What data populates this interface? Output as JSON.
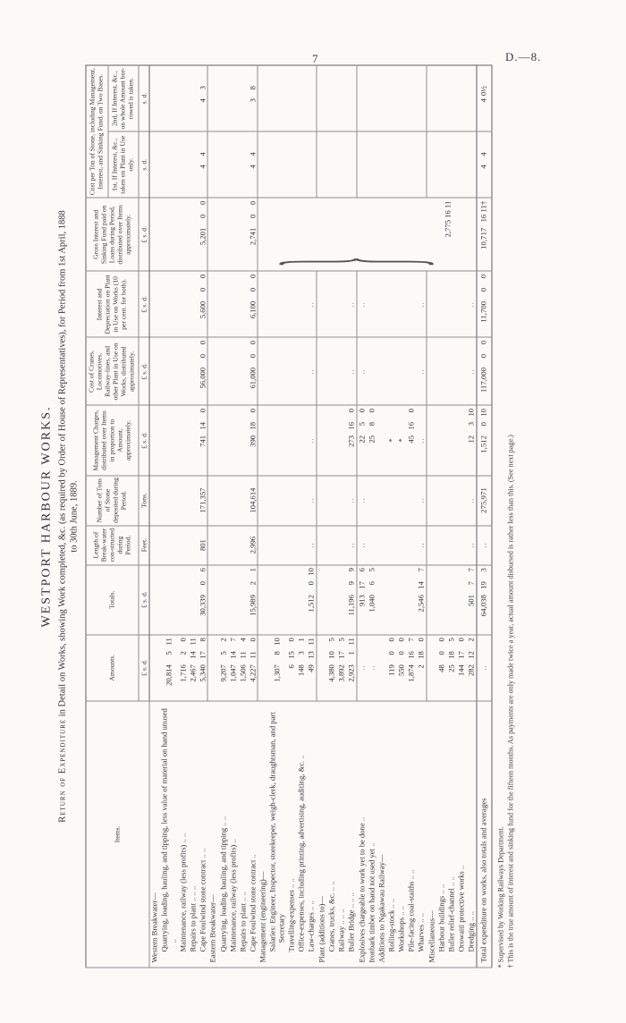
{
  "page": {
    "number": "7",
    "doc_ref": "D.—8."
  },
  "title": {
    "heading": "WESTPORT HARBOUR WORKS.",
    "subtitle_caps": "Return of Expenditure",
    "subtitle_rest": " in Detail on Works, showing Work completed, &c. (as required by Order of House of Representatives), for Period from 1st April, 1888",
    "subtitle_line2": "to 30th June, 1889."
  },
  "table": {
    "columns": [
      {
        "key": "items",
        "label": "Items.",
        "unit": ""
      },
      {
        "key": "amt",
        "label": "Amounts.",
        "unit": "£ s. d."
      },
      {
        "key": "tot",
        "label": "Totals.",
        "unit": "£ s. d."
      },
      {
        "key": "feet",
        "label": "Length of Break-water con-structed during Period.",
        "unit": "Feet."
      },
      {
        "key": "tons",
        "label": "Number of Tons of Stone deposited during Period.",
        "unit": "Tons."
      },
      {
        "key": "mgmt",
        "label": "Management Charges, distributed over Items in proportion to Amount, approximately.",
        "unit": "£ s. d."
      },
      {
        "key": "cranes",
        "label": "Cost of Cranes, Locomotives, Railway-lines, and other Plant in Use on Works, distributed approximately.",
        "unit": "£ s. d."
      },
      {
        "key": "intr",
        "label": "Interest and Depreciation on Plant in Use on Works (10 per cent. for both).",
        "unit": "£ s. d."
      },
      {
        "key": "gross",
        "label": "Gross Interest and Sinking Fund paid on Loans during Period, distributed over Items approximately.",
        "unit": "£ s. d."
      },
      {
        "key": "b1",
        "label": "1st, If Interest, &c., taken on Plant in Use only.",
        "unit": "s. d."
      },
      {
        "key": "b2",
        "label": "2nd, If Interest, &c., on whole Amount bor-rowed is taken.",
        "unit": "s. d."
      }
    ],
    "super_header": {
      "label": "Cost per Ton of Stone, including Management, Interest, and Sinking Fund, on Two Bases."
    },
    "rows": [
      {
        "label": "Western Breakwater—",
        "ind": 0
      },
      {
        "label": "Quarrying, loading, hauling, and tipping, less value of material on hand unused ..",
        "ind": 1,
        "amt": "20,814 5 11"
      },
      {
        "label": "Maintenance, railway (less profits) .. ..",
        "ind": 1,
        "amt": "1,716 2 0"
      },
      {
        "label": "Repairs to plant .. .. ..",
        "ind": 1,
        "amt": "2,467 14 11"
      },
      {
        "label": "Cape Foulwind stone contract .. ..",
        "ind": 1,
        "amt": "5,340 17 8",
        "tot": "30,339 0 6",
        "feet": "801",
        "tons": "171,357",
        "mgmt": "741 14 0",
        "cranes": "56,000 0 0",
        "intr": "5,600 0 0",
        "gross": "5,201 0 0",
        "b1": "4 4",
        "b2": "4 3"
      },
      {
        "label": "Eastern Breakwater—",
        "ind": 0,
        "sep": true
      },
      {
        "label": "Quarrying, loading, hauling, and tipping .. ..",
        "ind": 1,
        "amt": "9,207 5 2"
      },
      {
        "label": "Maintenance, railway (less profits) ..",
        "ind": 1,
        "amt": "1,047 14 7"
      },
      {
        "label": "Repairs to plant .. ..",
        "ind": 1,
        "amt": "1,506 11 4"
      },
      {
        "label": "Cape Foulwind stone contract ..",
        "ind": 1,
        "amt": "4,227 11 0",
        "tot": "15,989 2 1",
        "feet": "2,996",
        "tons": "104,614",
        "mgmt": "390 18 0",
        "cranes": "61,000 0 0",
        "intr": "6,100 0 0",
        "gross": "2,741 0 0",
        "b1": "4 4",
        "b2": "3 8"
      },
      {
        "label": "Management (engineering)—",
        "ind": 0,
        "sep": true
      },
      {
        "label": "Salaries: Engineer, Inspector, storekeeper, weigh-clerk, draughtsman, and part Secretary",
        "ind": 1,
        "amt": "1,307 8 10"
      },
      {
        "label": "Travelling-expenses .. ..",
        "ind": 1,
        "amt": "6 15 0"
      },
      {
        "label": "Office-expenses, including printing, advertising, auditing, &c. ..",
        "ind": 1,
        "amt": "148 3 1"
      },
      {
        "label": "Law-charges .. ..",
        "ind": 1,
        "amt": "49 13 11",
        "tot": "1,512 0 10",
        "feet": "..",
        "tons": "..",
        "mgmt": "..",
        "cranes": "..",
        "intr": ".."
      },
      {
        "label": "Plant (additions to)—",
        "ind": 0,
        "sep": true
      },
      {
        "label": "Cranes, trucks, &c. .. ..",
        "ind": 1,
        "amt": "4,380 10 5"
      },
      {
        "label": "Railway .. .. ..",
        "ind": 1,
        "amt": "3,892 17 5"
      },
      {
        "label": "Buller Bridge .. .. ..",
        "ind": 1,
        "amt": "2,923 1 11",
        "tot": "11,196 9 9",
        "feet": "..",
        "tons": "..",
        "mgmt": "273 16 0",
        "cranes": "..",
        "intr": ".."
      },
      {
        "label": "Explosives chargeable to work yet to be done ..",
        "ind": 0,
        "sep": true,
        "amt": "..",
        "tot": "913 17 6",
        "feet": "..",
        "tons": "..",
        "mgmt": "22 5 0",
        "cranes": "..",
        "intr": ".."
      },
      {
        "label": "Ironbark timber on hand not used yet ..",
        "ind": 0,
        "amt": "..",
        "tot": "1,040 6 5",
        "mgmt": "25 8 0"
      },
      {
        "label": "Additions to Ngakawau Railway—",
        "ind": 0
      },
      {
        "label": "Rolling-stock .. ..",
        "ind": 1,
        "amt": "119 0 0",
        "mgmt": "*"
      },
      {
        "label": "Workshops .. ..",
        "ind": 1,
        "amt": "550 0 0",
        "mgmt": "*"
      },
      {
        "label": "Pile-facing coal-staiths .. ..",
        "ind": 1,
        "amt": "1,874 16 7",
        "mgmt": "45 16 0"
      },
      {
        "label": "Wharves .. ..",
        "ind": 1,
        "amt": "2 18 0",
        "tot": "2,546 14 7",
        "feet": "..",
        "tons": "..",
        "mgmt": "..",
        "cranes": "..",
        "intr": ".."
      },
      {
        "label": "Miscellaneous—",
        "ind": 0,
        "sep": true
      },
      {
        "label": "Harbour buildings .. ..",
        "ind": 1,
        "amt": "48 0 0"
      },
      {
        "label": "Buller relief-channel .. ..",
        "ind": 1,
        "amt": "25 18 5"
      },
      {
        "label": "Orowaiti protective works ..",
        "ind": 1,
        "amt": "144 17 0"
      },
      {
        "label": "Dredging .. ..",
        "ind": 1,
        "amt": "282 12 2",
        "tot": "501 7 7",
        "feet": "..",
        "tons": "..",
        "mgmt": "12 3 10",
        "cranes": "..",
        "intr": ".."
      }
    ],
    "brace": {
      "from": 10,
      "span": 21,
      "value": "2,775 16 11"
    },
    "total_row": {
      "label": "Total expenditure on works, also totals and averages",
      "amt": "..",
      "tot": "64,038 19 3",
      "feet": "..",
      "tons": "275,971",
      "mgmt": "1,512 0 10",
      "cranes": "117,000 0 0",
      "intr": "11,700 0 0",
      "gross": "10,717 16 11†",
      "b1": "4 4",
      "b2": "4 0½"
    }
  },
  "footnotes": [
    "* Supervised by Working Railways Department.",
    "† This is the true amount of interest and sinking fund for the fifteen months.  As payments are only made twice a year, actual amount disbursed is rather less than this.  (See next page.)"
  ]
}
